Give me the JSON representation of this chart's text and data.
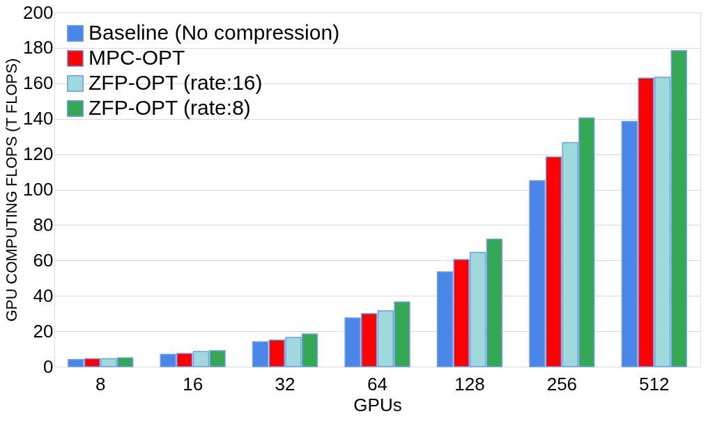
{
  "chart_data": {
    "type": "bar",
    "xlabel": "GPUs",
    "ylabel": "GPU COMPUTING FLOPS (T FLOPS)",
    "categories": [
      "8",
      "16",
      "32",
      "64",
      "128",
      "256",
      "512"
    ],
    "series": [
      {
        "name": "Baseline (No compression)",
        "color": "#4a86e8",
        "values": [
          4,
          7,
          14,
          27.5,
          53.5,
          105,
          138.5
        ]
      },
      {
        "name": " MPC-OPT",
        "color": "#ff0000",
        "values": [
          4.5,
          7.5,
          15,
          30,
          60.5,
          118.5,
          163
        ]
      },
      {
        "name": "ZFP-OPT (rate:16)",
        "color": "#9fd9dc",
        "values": [
          4.5,
          8.5,
          16.5,
          31.5,
          64.5,
          126.5,
          163.5
        ]
      },
      {
        "name": "ZFP-OPT (rate:8)",
        "color": "#34a853",
        "values": [
          5,
          9,
          18.5,
          36.5,
          72,
          140.5,
          178.5
        ]
      }
    ],
    "ylim": [
      0,
      200
    ],
    "yticks": [
      0,
      20,
      40,
      60,
      80,
      100,
      120,
      140,
      160,
      180,
      200
    ],
    "grid": "y",
    "legend": "top left"
  }
}
